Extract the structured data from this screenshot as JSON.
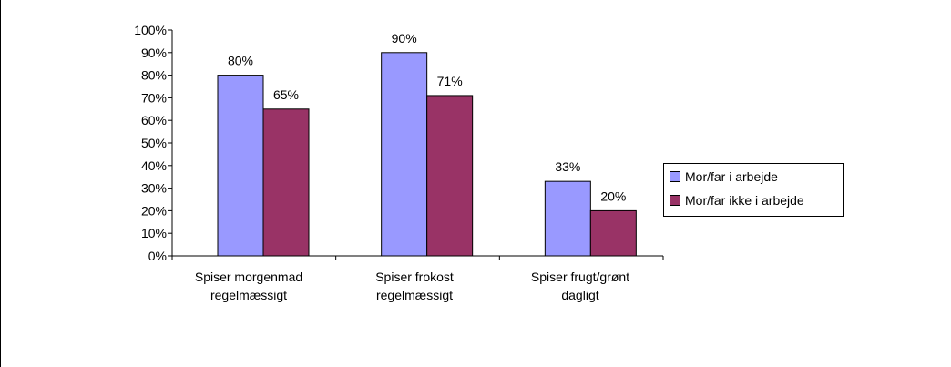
{
  "chart_data": {
    "type": "bar",
    "categories": [
      [
        "Spiser morgenmad",
        "regelmæssigt"
      ],
      [
        "Spiser frokost",
        "regelmæssigt"
      ],
      [
        "Spiser frugt/grønt",
        "dagligt"
      ]
    ],
    "series": [
      {
        "name": "Mor/far i arbejde",
        "values": [
          80,
          90,
          33
        ],
        "labels": [
          "80%",
          "90%",
          "33%"
        ],
        "color": "#9999FF"
      },
      {
        "name": "Mor/far ikke i arbejde",
        "values": [
          65,
          71,
          20
        ],
        "labels": [
          "65%",
          "71%",
          "20%"
        ],
        "color": "#993366"
      }
    ],
    "y_ticks": [
      "0%",
      "10%",
      "20%",
      "30%",
      "40%",
      "50%",
      "60%",
      "70%",
      "80%",
      "90%",
      "100%"
    ],
    "ylim": [
      0,
      100
    ],
    "grid": false,
    "legend_position": "right",
    "title": "",
    "xlabel": "",
    "ylabel": ""
  }
}
